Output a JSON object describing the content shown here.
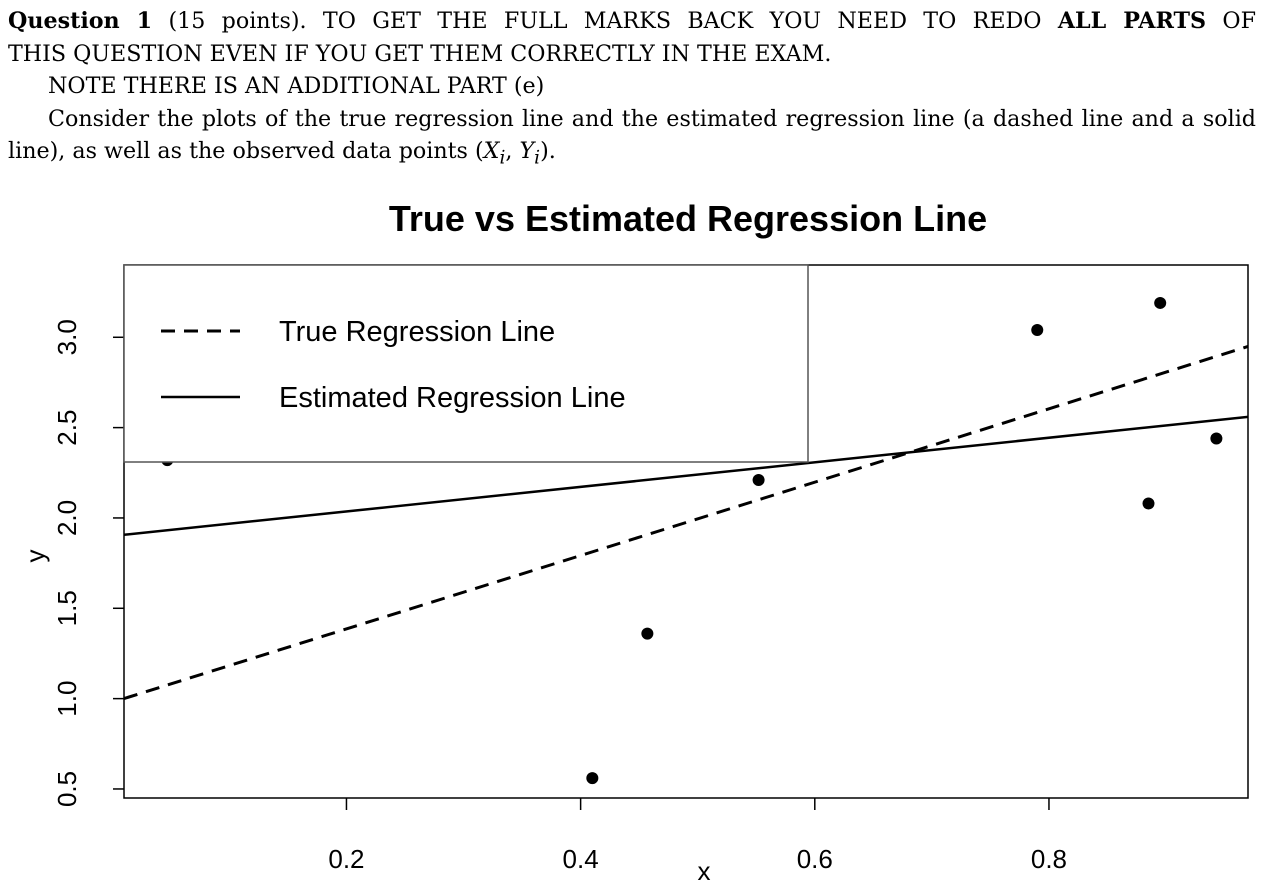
{
  "question": {
    "heading": "Question 1",
    "points": "(15 points).",
    "instruction_part1": " TO GET THE FULL MARKS BACK YOU NEED TO REDO ",
    "instruction_bold": "ALL PARTS",
    "instruction_part2": " OF",
    "instruction_line2": "THIS QUESTION EVEN IF YOU GET THEM CORRECTLY IN THE EXAM.",
    "note": "NOTE THERE IS AN ADDITIONAL PART (e)",
    "consider_line1": "Consider the plots of the true regression line and the estimated regression line (a dashed line and a solid",
    "consider_line2_prefix": "line), as well as the observed data points (",
    "math_X": "X",
    "math_Y": "Y",
    "math_sub": "i",
    "math_comma": ", ",
    "consider_line2_suffix": ")."
  },
  "chart_data": {
    "type": "scatter",
    "title": "True vs Estimated Regression Line",
    "xlabel": "x",
    "ylabel": "y",
    "xlim": [
      0.01,
      0.97
    ],
    "ylim": [
      0.45,
      3.4
    ],
    "x_ticks": [
      0.2,
      0.4,
      0.6,
      0.8
    ],
    "x_tick_labels": [
      "0.2",
      "0.4",
      "0.6",
      "0.8"
    ],
    "y_ticks": [
      0.5,
      1.0,
      1.5,
      2.0,
      2.5,
      3.0
    ],
    "y_tick_labels": [
      "0.5",
      "1.0",
      "1.5",
      "2.0",
      "2.5",
      "3.0"
    ],
    "grid": false,
    "points": [
      {
        "x": 0.047,
        "y": 2.32
      },
      {
        "x": 0.41,
        "y": 0.56
      },
      {
        "x": 0.457,
        "y": 1.36
      },
      {
        "x": 0.552,
        "y": 2.21
      },
      {
        "x": 0.79,
        "y": 3.04
      },
      {
        "x": 0.885,
        "y": 2.08
      },
      {
        "x": 0.895,
        "y": 3.19
      },
      {
        "x": 0.943,
        "y": 2.44
      }
    ],
    "series": [
      {
        "name": "True Regression Line",
        "style": "dashed",
        "intercept": 0.98,
        "slope": 2.03
      },
      {
        "name": "Estimated Regression Line",
        "style": "solid",
        "intercept": 1.9,
        "slope": 0.68
      }
    ],
    "legend": {
      "position": "top-left",
      "entries": [
        "True Regression Line",
        "Estimated Regression Line"
      ]
    },
    "colors": {
      "line": "#000000",
      "point": "#000000",
      "legend_box": "#555555"
    }
  }
}
